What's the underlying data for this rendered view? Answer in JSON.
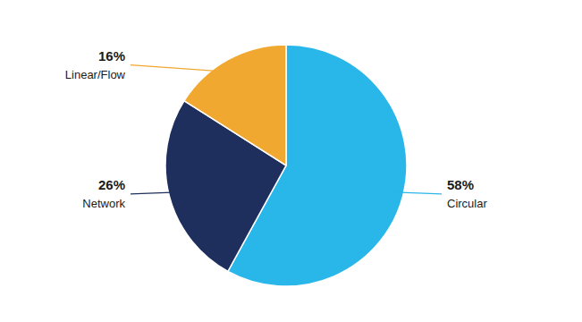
{
  "chart_data": {
    "type": "pie",
    "categories": [
      "Circular",
      "Network",
      "Linear/Flow"
    ],
    "values": [
      58,
      26,
      16
    ],
    "value_labels": [
      "58%",
      "26%",
      "16%"
    ],
    "colors": [
      "#29b6e8",
      "#1e2f5e",
      "#f0a830"
    ],
    "data_labels": true
  }
}
